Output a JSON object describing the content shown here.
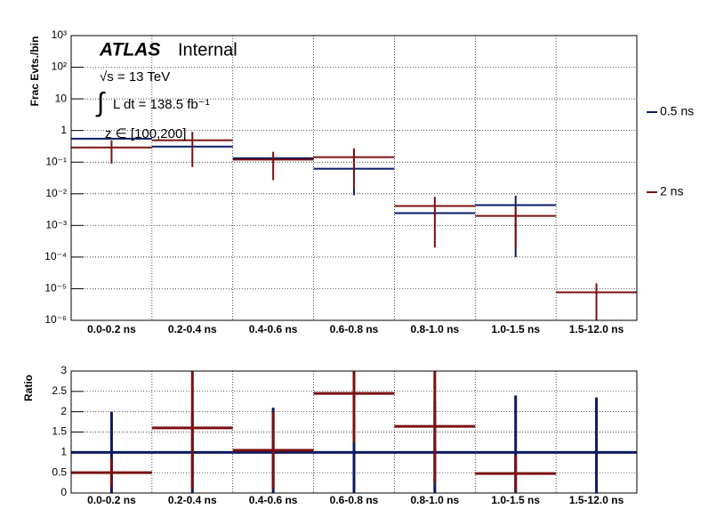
{
  "chart_data": [
    {
      "type": "errorbar",
      "y_label": "Frac Evts./bin",
      "annotations": [
        "ATLAS",
        "Internal",
        "√s = 13 TeV",
        "∫",
        "L dt = 138.5 fb⁻¹",
        "z ∈ [100,200]"
      ],
      "categories": [
        "0.0-0.2 ns",
        "0.2-0.4 ns",
        "0.4-0.6 ns",
        "0.6-0.8 ns",
        "0.8-1.0 ns",
        "1.0-1.5 ns",
        "1.5-12.0 ns"
      ],
      "log_y": true,
      "ylim": [
        1e-06,
        1000
      ],
      "yticks": [
        {
          "value": 1e-06,
          "label": "10⁻⁶"
        },
        {
          "value": 1e-05,
          "label": "10⁻⁵"
        },
        {
          "value": 0.0001,
          "label": "10⁻⁴"
        },
        {
          "value": 0.001,
          "label": "10⁻³"
        },
        {
          "value": 0.01,
          "label": "10⁻²"
        },
        {
          "value": 0.1,
          "label": "10⁻¹"
        },
        1,
        10,
        {
          "value": 100,
          "label": "10²"
        },
        {
          "value": 1000,
          "label": "10³"
        }
      ],
      "grid": true,
      "legend": "right",
      "series": [
        {
          "name": "0.5 ns",
          "color": "#0b1a63",
          "values": [
            0.55,
            0.31,
            0.134,
            0.062,
            0.00245,
            0.0044,
            null
          ],
          "errors": [
            0.02,
            0.02,
            0.01,
            0.053,
            0.0003,
            0.0043,
            null
          ]
        },
        {
          "name": "2 ns",
          "color": "#7a1111",
          "values": [
            0.29,
            0.49,
            0.12,
            0.144,
            0.0041,
            0.002,
            7.7e-06
          ],
          "errors": [
            0.2,
            0.42,
            0.093,
            0.13,
            0.0039,
            0.0018,
            7.1e-06
          ]
        }
      ]
    },
    {
      "type": "errorbar",
      "y_label": "Ratio",
      "categories": [
        "0.0-0.2 ns",
        "0.2-0.4 ns",
        "0.4-0.6 ns",
        "0.6-0.8 ns",
        "0.8-1.0 ns",
        "1.0-1.5 ns",
        "1.5-12.0 ns"
      ],
      "log_y": false,
      "ylim": [
        0,
        3
      ],
      "yticks": [
        0,
        0.5,
        1,
        1.5,
        2,
        2.5,
        3
      ],
      "grid": true,
      "series": [
        {
          "color": "#0b1a63",
          "values": [
            1,
            1,
            1,
            1,
            1,
            1,
            1
          ],
          "errors": [
            1.0,
            1.0,
            1.1,
            1.2,
            1.25,
            1.4,
            1.35
          ]
        },
        {
          "color": "#7a1111",
          "values": [
            0.5,
            1.6,
            1.05,
            2.45,
            1.64,
            0.48,
            null
          ],
          "errors": [
            0.35,
            1.5,
            0.95,
            1.2,
            1.4,
            0.45,
            null
          ]
        }
      ]
    }
  ]
}
